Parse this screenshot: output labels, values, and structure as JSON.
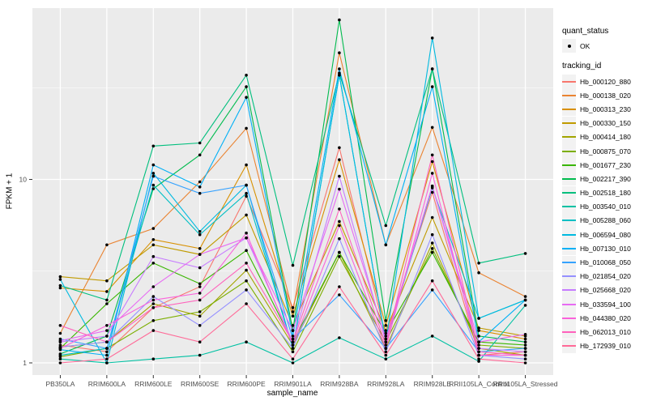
{
  "chart_data": {
    "type": "line",
    "title": "",
    "xlabel": "sample_name",
    "ylabel": "FPKM + 1",
    "y_scale": "log10",
    "y_ticks": [
      {
        "value": 1,
        "label": "1"
      },
      {
        "value": 10,
        "label": "10"
      }
    ],
    "y_minor": [
      3.162,
      31.62
    ],
    "ylim": [
      0.95,
      86
    ],
    "grid": "on",
    "legend_position": "right",
    "point_color": "#000000",
    "panel_bg": "#EBEBEB",
    "grid_color": "#FFFFFF",
    "tick_label_color": "#4D4D4D",
    "categories": [
      "PB350LA",
      "RRIM600LA",
      "RRIM600LE",
      "RRIM600SE",
      "RRIM600PE",
      "RRIM901LA",
      "RRIM928BA",
      "RRIM928LA",
      "RRIM928LE",
      "RRII105LA_Control",
      "RRII105LA_Stressed"
    ],
    "series": [
      {
        "name": "Hb_000120_880",
        "color": "#F8766D",
        "values": [
          1.25,
          1.15,
          2.0,
          2.6,
          8.1,
          2.0,
          14.9,
          1.4,
          8.5,
          1.1,
          1.15
        ]
      },
      {
        "name": "Hb_000138_020",
        "color": "#EA8331",
        "values": [
          1.45,
          4.4,
          5.4,
          9.7,
          19.0,
          1.9,
          49.0,
          4.4,
          19.2,
          3.1,
          2.3
        ]
      },
      {
        "name": "Hb_000313_230",
        "color": "#D89000",
        "values": [
          2.56,
          2.45,
          4.7,
          4.2,
          12.0,
          1.8,
          12.8,
          1.6,
          12.5,
          1.5,
          1.35
        ]
      },
      {
        "name": "Hb_000330_150",
        "color": "#C09B00",
        "values": [
          2.95,
          2.8,
          4.4,
          3.9,
          6.4,
          1.6,
          5.9,
          1.5,
          6.2,
          1.55,
          1.4
        ]
      },
      {
        "name": "Hb_000414_180",
        "color": "#A3A500",
        "values": [
          1.22,
          1.3,
          2.1,
          1.8,
          3.2,
          1.25,
          4.0,
          1.2,
          4.5,
          1.2,
          1.1
        ]
      },
      {
        "name": "Hb_000875_070",
        "color": "#7CAE00",
        "values": [
          1.08,
          1.2,
          1.7,
          1.9,
          2.8,
          1.15,
          3.8,
          1.3,
          4.2,
          1.25,
          1.2
        ]
      },
      {
        "name": "Hb_001677_230",
        "color": "#39B600",
        "values": [
          1.2,
          2.1,
          3.5,
          2.7,
          4.1,
          1.3,
          4.0,
          1.45,
          4.0,
          1.3,
          1.25
        ]
      },
      {
        "name": "Hb_002217_390",
        "color": "#00BB4E",
        "values": [
          1.12,
          1.4,
          8.9,
          13.6,
          32.0,
          1.5,
          74.0,
          1.7,
          40.0,
          1.4,
          1.3
        ]
      },
      {
        "name": "Hb_002518_180",
        "color": "#00BF7D",
        "values": [
          2.64,
          2.2,
          15.2,
          15.8,
          37.0,
          3.4,
          38.0,
          5.6,
          40.0,
          3.5,
          3.95
        ]
      },
      {
        "name": "Hb_003540_010",
        "color": "#00C1A3",
        "values": [
          1.05,
          1.0,
          1.05,
          1.1,
          1.3,
          1.0,
          1.37,
          1.05,
          1.4,
          1.02,
          2.06
        ]
      },
      {
        "name": "Hb_005288_060",
        "color": "#00BFC4",
        "values": [
          1.1,
          1.2,
          9.3,
          5.0,
          8.4,
          1.2,
          37.0,
          1.3,
          9.0,
          1.75,
          2.2
        ]
      },
      {
        "name": "Hb_006594_080",
        "color": "#00BAE0",
        "values": [
          2.85,
          1.0,
          10.8,
          5.2,
          9.3,
          1.2,
          37.0,
          1.3,
          59.0,
          1.75,
          2.2
        ]
      },
      {
        "name": "Hb_007130_010",
        "color": "#00B0F6",
        "values": [
          1.18,
          1.1,
          12.0,
          9.1,
          28.0,
          1.4,
          40.0,
          4.4,
          32.0,
          1.3,
          2.2
        ]
      },
      {
        "name": "Hb_010068_050",
        "color": "#35A2FF",
        "values": [
          1.35,
          1.2,
          10.4,
          8.4,
          9.3,
          1.35,
          2.35,
          1.2,
          2.5,
          1.15,
          1.2
        ]
      },
      {
        "name": "Hb_021854_020",
        "color": "#9590FF",
        "values": [
          1.22,
          1.3,
          2.3,
          1.6,
          2.5,
          1.2,
          4.75,
          1.15,
          5.0,
          1.1,
          1.05
        ]
      },
      {
        "name": "Hb_025668_020",
        "color": "#C77CFF",
        "values": [
          1.3,
          1.4,
          3.8,
          3.3,
          4.8,
          1.3,
          10.4,
          1.3,
          9.2,
          1.2,
          1.15
        ]
      },
      {
        "name": "Hb_033594_100",
        "color": "#E76BF3",
        "values": [
          1.32,
          1.5,
          2.6,
          3.9,
          4.8,
          1.5,
          8.85,
          1.35,
          9.2,
          1.3,
          1.43
        ]
      },
      {
        "name": "Hb_044380_020",
        "color": "#FA62DB",
        "values": [
          1.2,
          1.6,
          2.2,
          2.4,
          5.1,
          1.25,
          5.6,
          1.2,
          10.8,
          1.1,
          1.1
        ]
      },
      {
        "name": "Hb_062013_010",
        "color": "#FF62BC",
        "values": [
          1.6,
          1.3,
          2.0,
          2.2,
          3.5,
          1.3,
          6.9,
          1.25,
          13.6,
          1.15,
          1.1
        ]
      },
      {
        "name": "Hb_172939_010",
        "color": "#FF6A98",
        "values": [
          1.0,
          1.05,
          1.5,
          1.3,
          2.1,
          1.05,
          2.6,
          1.1,
          2.8,
          1.05,
          1.0
        ]
      }
    ],
    "legend": {
      "quant_status_title": "quant_status",
      "ok_label": "OK",
      "tracking_id_title": "tracking_id"
    }
  }
}
